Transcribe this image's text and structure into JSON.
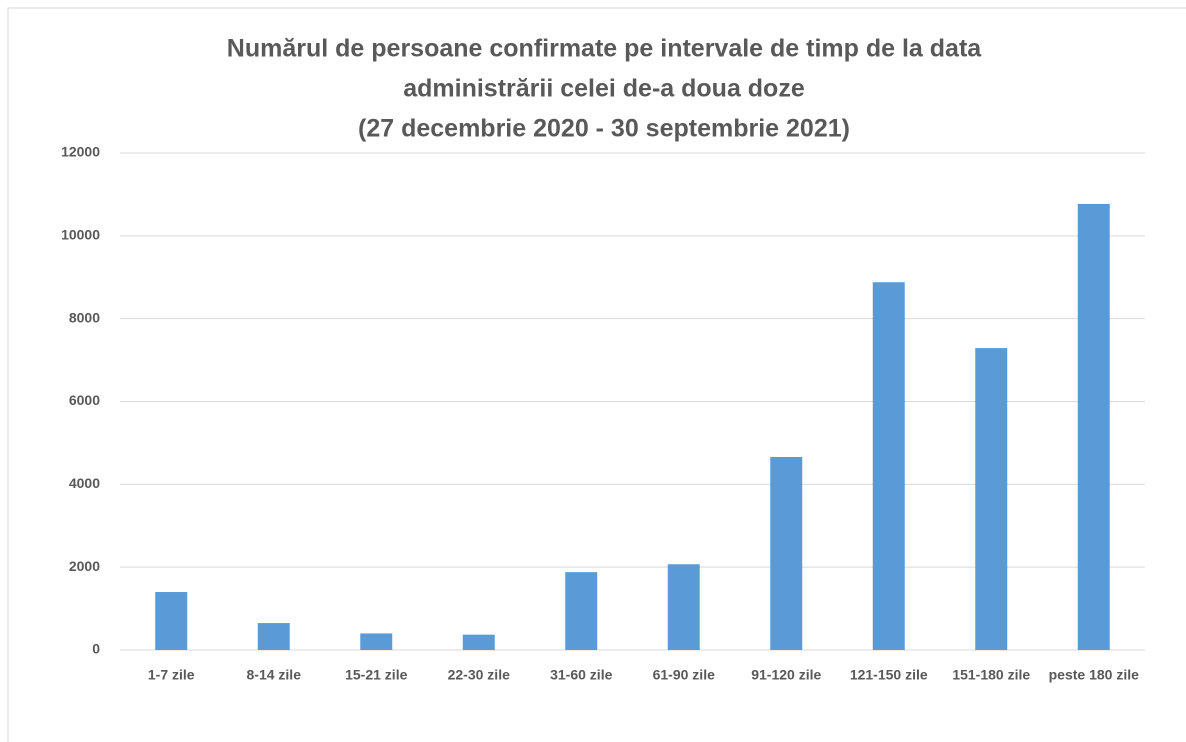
{
  "chart_data": {
    "type": "bar",
    "title": [
      "Numărul de persoane confirmate pe intervale de timp de la data",
      "administrării celei de-a doua doze",
      "(27 decembrie 2020 - 30 septembrie 2021)"
    ],
    "categories": [
      "1-7 zile",
      "8-14 zile",
      "15-21 zile",
      "22-30 zile",
      "31-60 zile",
      "61-90 zile",
      "91-120 zile",
      "121-150 zile",
      "151-180 zile",
      "peste 180 zile"
    ],
    "values": [
      1400,
      650,
      400,
      370,
      1880,
      2070,
      4660,
      8880,
      7290,
      10770
    ],
    "color": "#5b9bd5",
    "ylim": [
      0,
      12000
    ],
    "yticks": [
      0,
      2000,
      4000,
      6000,
      8000,
      10000,
      12000
    ],
    "grid": true
  }
}
